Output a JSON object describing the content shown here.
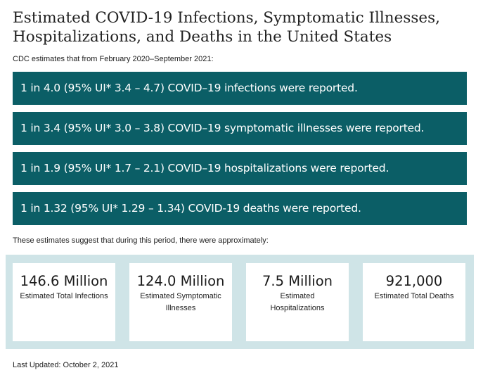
{
  "title": "Estimated COVID-19 Infections, Symptomatic Illnesses, Hospitalizations, and Deaths in the United States",
  "intro": "CDC estimates that from February 2020–September 2021:",
  "bars": [
    "1 in 4.0 (95% UI* 3.4 – 4.7) COVID–19 infections were reported.",
    "1 in 3.4 (95% UI* 3.0 – 3.8) COVID–19 symptomatic illnesses were reported.",
    "1 in 1.9 (95% UI* 1.7 – 2.1) COVID–19 hospitalizations were reported.",
    "1 in 1.32 (95% UI* 1.29 – 1.34) COVID-19 deaths were reported."
  ],
  "suggest": "These estimates suggest that during this period, there were approximately:",
  "stats": [
    {
      "value": "146.6 Million",
      "label": "Estimated Total Infections"
    },
    {
      "value": "124.0 Million",
      "label": "Estimated Symptomatic Illnesses"
    },
    {
      "value": "7.5 Million",
      "label": "Estimated Hospitalizations"
    },
    {
      "value": "921,000",
      "label": "Estimated Total Deaths"
    }
  ],
  "last_updated": "Last Updated: October 2, 2021",
  "colors": {
    "bar_bg": "#0b5e66",
    "stats_bg": "#cfe4e7"
  }
}
